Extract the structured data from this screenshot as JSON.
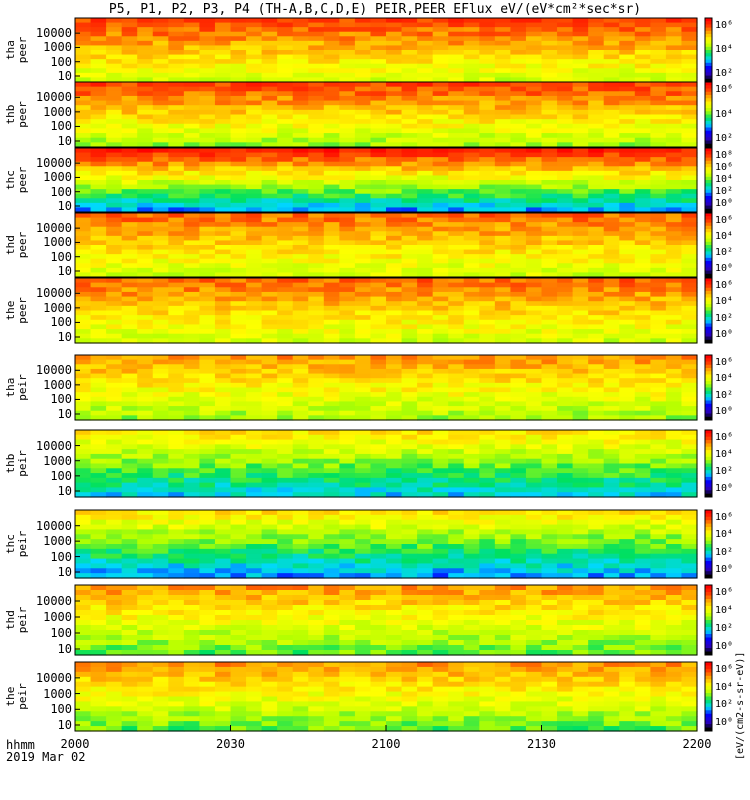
{
  "title": "P5, P1, P2, P3, P4 (TH-A,B,C,D,E) PEIR,PEER EFlux eV/(eV*cm²*sec*sr)",
  "time_axis": {
    "label_row1": "hhmm",
    "label_row2": "2019 Mar 02",
    "ticks": [
      "2000",
      "2030",
      "2100",
      "2130",
      "2200"
    ]
  },
  "colorbar_units": "[eV/(cm2-s-sr-eV)]",
  "colors": {
    "frame": "#000000",
    "palette": [
      "#000000",
      "#2a00c8",
      "#0000ff",
      "#00d8ff",
      "#00e060",
      "#b4ff00",
      "#ffff00",
      "#ffb000",
      "#ff4000",
      "#ff0000"
    ]
  },
  "chart_data": {
    "type": "heatmap",
    "x_range": [
      "2000",
      "2200"
    ],
    "y_scale": "log",
    "y_ticks": [
      "10",
      "100",
      "1000",
      "10000"
    ],
    "panels": [
      {
        "label1": "tha",
        "label2": "peer",
        "cbar_ticks": [
          "10⁶",
          "10⁴",
          "10²"
        ],
        "base_level": 0.6,
        "top_level": 0.9
      },
      {
        "label1": "thb",
        "label2": "peer",
        "cbar_ticks": [
          "10⁶",
          "10⁴",
          "10²"
        ],
        "base_level": 0.55,
        "top_level": 0.9
      },
      {
        "label1": "thc",
        "label2": "peer",
        "cbar_ticks": [
          "10⁸",
          "10⁶",
          "10⁴",
          "10²",
          "10⁰"
        ],
        "base_level": 0.3,
        "top_level": 0.95
      },
      {
        "label1": "thd",
        "label2": "peer",
        "cbar_ticks": [
          "10⁶",
          "10⁴",
          "10²",
          "10⁰"
        ],
        "base_level": 0.6,
        "top_level": 0.85
      },
      {
        "label1": "the",
        "label2": "peer",
        "cbar_ticks": [
          "10⁶",
          "10⁴",
          "10²",
          "10⁰"
        ],
        "base_level": 0.6,
        "top_level": 0.85
      },
      {
        "label1": "tha",
        "label2": "peir",
        "cbar_ticks": [
          "10⁶",
          "10⁴",
          "10²",
          "10⁰"
        ],
        "base_level": 0.55,
        "top_level": 0.8
      },
      {
        "label1": "thb",
        "label2": "peir",
        "cbar_ticks": [
          "10⁶",
          "10⁴",
          "10²",
          "10⁰"
        ],
        "base_level": 0.35,
        "top_level": 0.7
      },
      {
        "label1": "thc",
        "label2": "peir",
        "cbar_ticks": [
          "10⁶",
          "10⁴",
          "10²",
          "10⁰"
        ],
        "base_level": 0.3,
        "top_level": 0.7
      },
      {
        "label1": "thd",
        "label2": "peir",
        "cbar_ticks": [
          "10⁶",
          "10⁴",
          "10²",
          "10⁰"
        ],
        "base_level": 0.5,
        "top_level": 0.8
      },
      {
        "label1": "the",
        "label2": "peir",
        "cbar_ticks": [
          "10⁶",
          "10⁴",
          "10²",
          "10⁰"
        ],
        "base_level": 0.5,
        "top_level": 0.8
      }
    ]
  }
}
